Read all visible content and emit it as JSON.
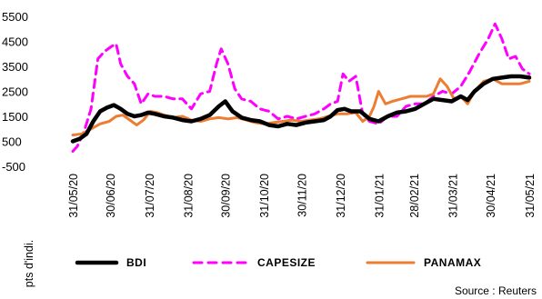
{
  "chart_data": {
    "type": "line",
    "title": "",
    "xlabel": "",
    "ylabel": "pts d'indi.",
    "ylim": [
      -500,
      5500
    ],
    "yticks": [
      5500,
      4500,
      3500,
      2500,
      1500,
      500,
      -500
    ],
    "x_tick_labels": [
      "31/05/20",
      "30/06/20",
      "31/07/20",
      "31/08/20",
      "30/09/20",
      "31/10/20",
      "30/11/20",
      "31/12/20",
      "31/01/21",
      "28/02/21",
      "31/03/21",
      "30/04/21",
      "31/05/21"
    ],
    "x_tick_fractions": [
      0.0,
      0.082,
      0.167,
      0.252,
      0.334,
      0.418,
      0.501,
      0.586,
      0.67,
      0.747,
      0.832,
      0.914,
      1.0
    ],
    "grid": false,
    "legend_position": "bottom",
    "series": [
      {
        "name": "BDI",
        "color": "#000000",
        "style": "solid",
        "points": [
          [
            0.0,
            500
          ],
          [
            0.015,
            600
          ],
          [
            0.03,
            800
          ],
          [
            0.045,
            1300
          ],
          [
            0.06,
            1700
          ],
          [
            0.075,
            1850
          ],
          [
            0.09,
            1950
          ],
          [
            0.105,
            1800
          ],
          [
            0.12,
            1600
          ],
          [
            0.135,
            1500
          ],
          [
            0.15,
            1550
          ],
          [
            0.165,
            1650
          ],
          [
            0.18,
            1600
          ],
          [
            0.2,
            1500
          ],
          [
            0.22,
            1450
          ],
          [
            0.24,
            1350
          ],
          [
            0.26,
            1300
          ],
          [
            0.28,
            1400
          ],
          [
            0.3,
            1550
          ],
          [
            0.32,
            1900
          ],
          [
            0.334,
            2100
          ],
          [
            0.35,
            1700
          ],
          [
            0.37,
            1450
          ],
          [
            0.39,
            1350
          ],
          [
            0.41,
            1300
          ],
          [
            0.43,
            1150
          ],
          [
            0.45,
            1100
          ],
          [
            0.47,
            1200
          ],
          [
            0.49,
            1150
          ],
          [
            0.51,
            1250
          ],
          [
            0.53,
            1300
          ],
          [
            0.55,
            1350
          ],
          [
            0.565,
            1500
          ],
          [
            0.58,
            1750
          ],
          [
            0.595,
            1800
          ],
          [
            0.61,
            1700
          ],
          [
            0.63,
            1700
          ],
          [
            0.65,
            1400
          ],
          [
            0.67,
            1300
          ],
          [
            0.69,
            1500
          ],
          [
            0.71,
            1650
          ],
          [
            0.73,
            1700
          ],
          [
            0.75,
            1800
          ],
          [
            0.77,
            2000
          ],
          [
            0.79,
            2200
          ],
          [
            0.81,
            2150
          ],
          [
            0.83,
            2100
          ],
          [
            0.85,
            2300
          ],
          [
            0.865,
            2150
          ],
          [
            0.88,
            2500
          ],
          [
            0.9,
            2800
          ],
          [
            0.92,
            3000
          ],
          [
            0.94,
            3050
          ],
          [
            0.96,
            3100
          ],
          [
            0.98,
            3100
          ],
          [
            1.0,
            3050
          ]
        ]
      },
      {
        "name": "CAPESIZE",
        "color": "#ff00ff",
        "style": "dashed",
        "points": [
          [
            0.0,
            100
          ],
          [
            0.01,
            300
          ],
          [
            0.025,
            900
          ],
          [
            0.04,
            1800
          ],
          [
            0.055,
            3800
          ],
          [
            0.07,
            4100
          ],
          [
            0.085,
            4300
          ],
          [
            0.095,
            4400
          ],
          [
            0.105,
            3600
          ],
          [
            0.12,
            3100
          ],
          [
            0.135,
            2800
          ],
          [
            0.15,
            2000
          ],
          [
            0.165,
            2400
          ],
          [
            0.18,
            2300
          ],
          [
            0.2,
            2300
          ],
          [
            0.22,
            2200
          ],
          [
            0.24,
            2200
          ],
          [
            0.26,
            1800
          ],
          [
            0.28,
            2400
          ],
          [
            0.3,
            2500
          ],
          [
            0.315,
            3600
          ],
          [
            0.325,
            4200
          ],
          [
            0.34,
            3600
          ],
          [
            0.355,
            2600
          ],
          [
            0.37,
            2200
          ],
          [
            0.39,
            2100
          ],
          [
            0.41,
            1800
          ],
          [
            0.43,
            1700
          ],
          [
            0.45,
            1400
          ],
          [
            0.47,
            1500
          ],
          [
            0.49,
            1400
          ],
          [
            0.51,
            1500
          ],
          [
            0.53,
            1600
          ],
          [
            0.55,
            1800
          ],
          [
            0.565,
            2000
          ],
          [
            0.58,
            2100
          ],
          [
            0.592,
            3200
          ],
          [
            0.605,
            2900
          ],
          [
            0.62,
            3100
          ],
          [
            0.635,
            1600
          ],
          [
            0.65,
            1300
          ],
          [
            0.67,
            1200
          ],
          [
            0.69,
            1500
          ],
          [
            0.71,
            1500
          ],
          [
            0.73,
            1900
          ],
          [
            0.75,
            2000
          ],
          [
            0.77,
            2000
          ],
          [
            0.79,
            2300
          ],
          [
            0.81,
            2500
          ],
          [
            0.83,
            2400
          ],
          [
            0.85,
            2700
          ],
          [
            0.87,
            3300
          ],
          [
            0.89,
            4000
          ],
          [
            0.91,
            4600
          ],
          [
            0.925,
            5200
          ],
          [
            0.94,
            4600
          ],
          [
            0.955,
            3800
          ],
          [
            0.97,
            3900
          ],
          [
            0.985,
            3400
          ],
          [
            1.0,
            3200
          ]
        ]
      },
      {
        "name": "PANAMAX",
        "color": "#ed7d31",
        "style": "solid",
        "points": [
          [
            0.0,
            750
          ],
          [
            0.02,
            800
          ],
          [
            0.04,
            1000
          ],
          [
            0.06,
            1200
          ],
          [
            0.08,
            1300
          ],
          [
            0.095,
            1500
          ],
          [
            0.11,
            1550
          ],
          [
            0.125,
            1350
          ],
          [
            0.14,
            1150
          ],
          [
            0.155,
            1350
          ],
          [
            0.17,
            1700
          ],
          [
            0.185,
            1650
          ],
          [
            0.2,
            1550
          ],
          [
            0.22,
            1450
          ],
          [
            0.24,
            1500
          ],
          [
            0.26,
            1350
          ],
          [
            0.28,
            1300
          ],
          [
            0.3,
            1400
          ],
          [
            0.32,
            1450
          ],
          [
            0.34,
            1400
          ],
          [
            0.36,
            1450
          ],
          [
            0.38,
            1350
          ],
          [
            0.4,
            1250
          ],
          [
            0.42,
            1200
          ],
          [
            0.44,
            1250
          ],
          [
            0.46,
            1300
          ],
          [
            0.48,
            1350
          ],
          [
            0.5,
            1300
          ],
          [
            0.52,
            1350
          ],
          [
            0.54,
            1400
          ],
          [
            0.56,
            1500
          ],
          [
            0.58,
            1600
          ],
          [
            0.6,
            1600
          ],
          [
            0.62,
            1650
          ],
          [
            0.635,
            1300
          ],
          [
            0.65,
            1500
          ],
          [
            0.66,
            1900
          ],
          [
            0.67,
            2500
          ],
          [
            0.685,
            2000
          ],
          [
            0.7,
            2100
          ],
          [
            0.72,
            2200
          ],
          [
            0.74,
            2300
          ],
          [
            0.76,
            2300
          ],
          [
            0.775,
            2300
          ],
          [
            0.79,
            2400
          ],
          [
            0.805,
            3000
          ],
          [
            0.82,
            2700
          ],
          [
            0.835,
            2200
          ],
          [
            0.85,
            2300
          ],
          [
            0.865,
            2000
          ],
          [
            0.88,
            2500
          ],
          [
            0.9,
            2900
          ],
          [
            0.92,
            3000
          ],
          [
            0.94,
            2800
          ],
          [
            0.96,
            2800
          ],
          [
            0.98,
            2800
          ],
          [
            1.0,
            2900
          ]
        ]
      }
    ],
    "source": "Source : Reuters"
  }
}
